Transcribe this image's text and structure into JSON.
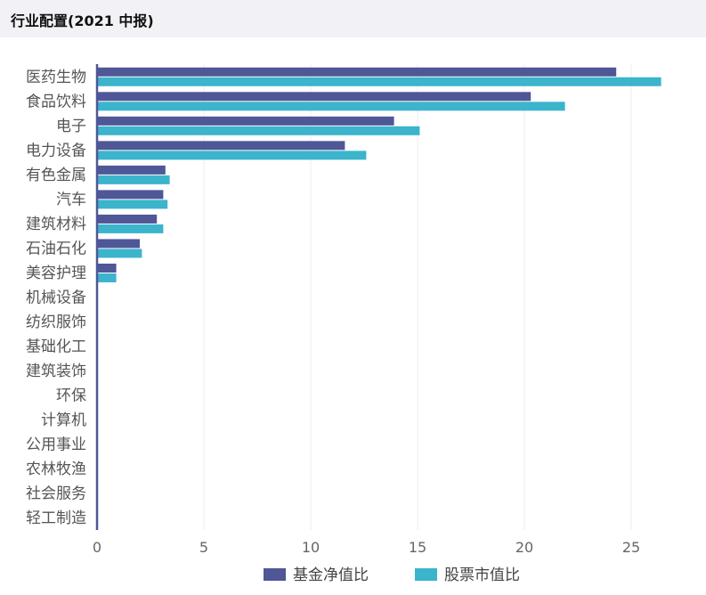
{
  "header": {
    "title": "行业配置(2021 中报)"
  },
  "chart_data": {
    "type": "bar",
    "orientation": "horizontal",
    "categories": [
      "医药生物",
      "食品饮料",
      "电子",
      "电力设备",
      "有色金属",
      "汽车",
      "建筑材料",
      "石油石化",
      "美容护理",
      "机械设备",
      "纺织服饰",
      "基础化工",
      "建筑装饰",
      "环保",
      "计算机",
      "公用事业",
      "农林牧渔",
      "社会服务",
      "轻工制造"
    ],
    "series": [
      {
        "name": "基金净值比",
        "color": "#4f5797",
        "values": [
          24.3,
          20.3,
          13.9,
          11.6,
          3.2,
          3.1,
          2.8,
          2.0,
          0.9,
          0,
          0,
          0,
          0,
          0,
          0,
          0,
          0,
          0,
          0
        ]
      },
      {
        "name": "股票市值比",
        "color": "#3bb4cc",
        "values": [
          26.4,
          21.9,
          15.1,
          12.6,
          3.4,
          3.3,
          3.1,
          2.1,
          0.9,
          0,
          0,
          0,
          0,
          0,
          0,
          0,
          0,
          0,
          0
        ]
      }
    ],
    "xlim": [
      0,
      27
    ],
    "xticks": [
      0,
      5,
      10,
      15,
      20,
      25
    ],
    "grid": true,
    "legend": "bottom"
  }
}
